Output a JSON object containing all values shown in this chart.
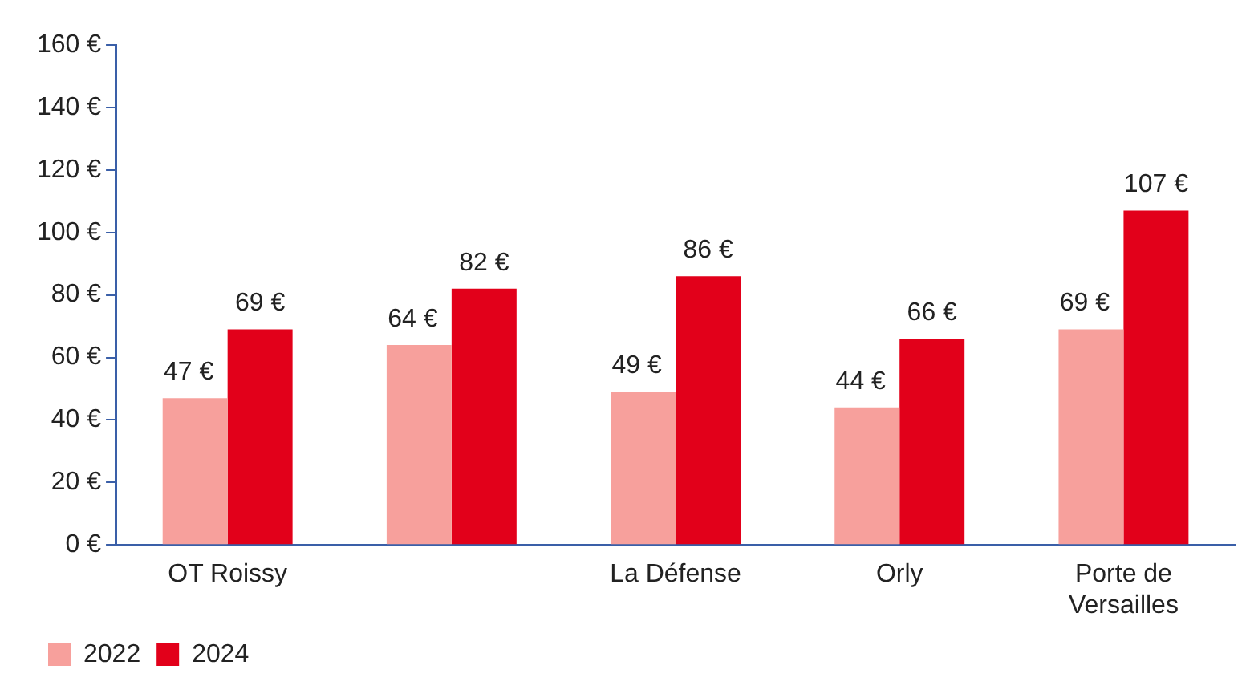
{
  "chart_data": {
    "type": "bar",
    "categories": [
      "OT Roissy",
      null,
      "La Défense",
      "Orly",
      "Porte de Versailles"
    ],
    "series": [
      {
        "name": "2022",
        "color": "#f7a09c",
        "values": [
          47,
          64,
          49,
          44,
          69
        ],
        "value_labels": [
          "47 €",
          "64 €",
          "49 €",
          "44 €",
          "69 €"
        ]
      },
      {
        "name": "2024",
        "color": "#e2001a",
        "values": [
          69,
          82,
          86,
          66,
          107
        ],
        "value_labels": [
          "69 €",
          "82 €",
          "86 €",
          "66 €",
          "107 €"
        ]
      }
    ],
    "ylim": [
      0,
      160
    ],
    "yticks": [
      {
        "value": 0,
        "label": "0 €"
      },
      {
        "value": 20,
        "label": "20 €"
      },
      {
        "value": 40,
        "label": "40 €"
      },
      {
        "value": 60,
        "label": "60 €"
      },
      {
        "value": 80,
        "label": "80 €"
      },
      {
        "value": 100,
        "label": "100 €"
      },
      {
        "value": 120,
        "label": "120 €"
      },
      {
        "value": 140,
        "label": "140 €"
      },
      {
        "value": 160,
        "label": "160 €"
      }
    ],
    "grid": false,
    "legend": "bottom left"
  }
}
